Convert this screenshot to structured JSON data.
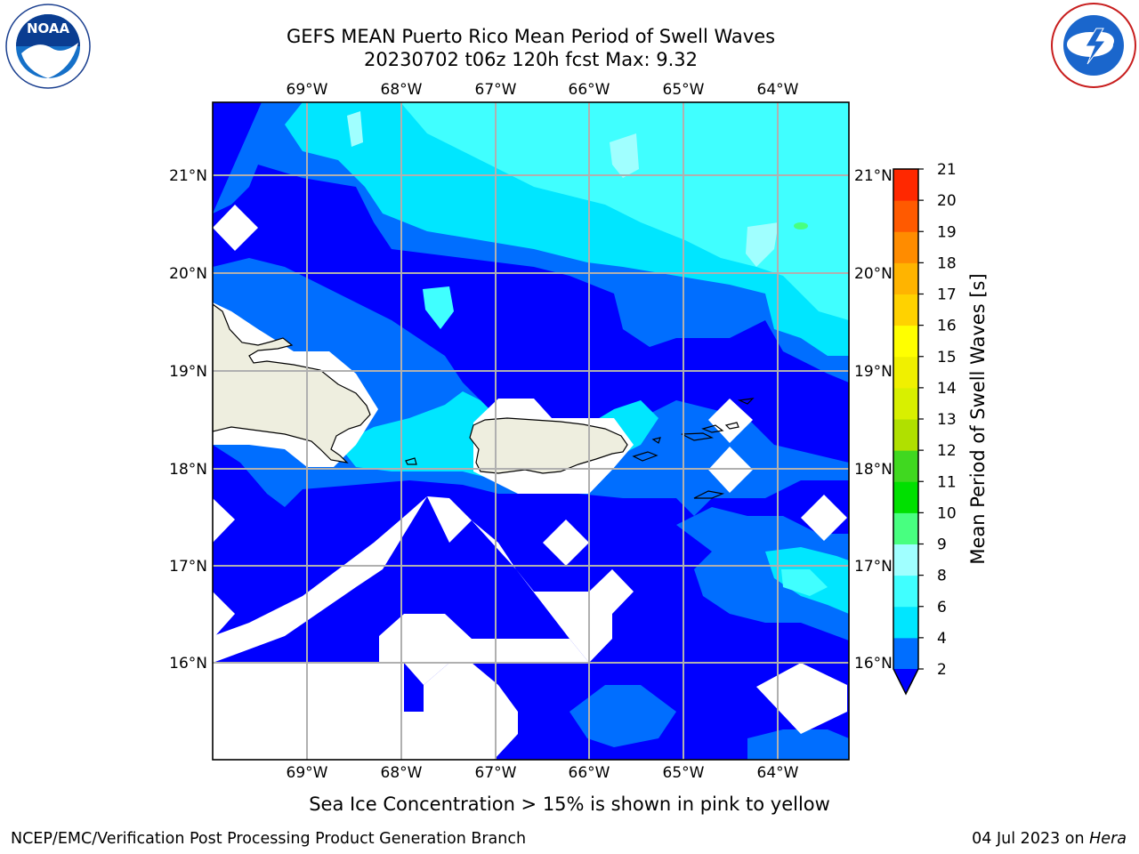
{
  "header": {
    "title_line1": "GEFS MEAN Puerto Rico Mean Period of Swell Waves",
    "title_line2": "20230702 t06z 120h fcst   Max: 9.32"
  },
  "logos": {
    "left_text": "NOAA",
    "left_ring_text": "NATIONAL OCEANIC AND ATMOSPHERIC ADMINISTRATION · U.S. DEPARTMENT OF COMMERCE",
    "right_ring_text": "NATIONAL WEATHER SERVICE"
  },
  "map": {
    "lon_labels": [
      "69°W",
      "68°W",
      "67°W",
      "66°W",
      "65°W",
      "64°W"
    ],
    "lat_labels": [
      "21°N",
      "20°N",
      "19°N",
      "18°N",
      "17°N",
      "16°N"
    ],
    "land_color": "#eeeedf",
    "ocean_base_color": "#0000ff"
  },
  "colorbar": {
    "label": "Mean Period of Swell Waves [s]",
    "levels": [
      "2",
      "4",
      "6",
      "8",
      "9",
      "10",
      "11",
      "12",
      "13",
      "14",
      "15",
      "16",
      "17",
      "18",
      "19",
      "20",
      "21"
    ],
    "colors": [
      "#006eff",
      "#00e6ff",
      "#40ffff",
      "#a0ffff",
      "#48ff80",
      "#00e000",
      "#40d820",
      "#b0e000",
      "#d8f000",
      "#f0f000",
      "#ffff00",
      "#ffd200",
      "#ffb400",
      "#ff8c00",
      "#ff5a00",
      "#ff2800"
    ],
    "under_color": "#0000ff"
  },
  "note": "Sea Ice Concentration > 15% is shown in pink to yellow",
  "footer": {
    "left": "NCEP/EMC/Verification Post Processing Product Generation Branch",
    "date": "04 Jul 2023 on ",
    "host": "Hera"
  }
}
